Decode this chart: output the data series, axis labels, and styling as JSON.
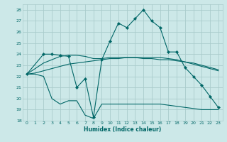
{
  "xlabel": "Humidex (Indice chaleur)",
  "bg_color": "#cce8e8",
  "grid_color": "#aacccc",
  "line_color": "#006666",
  "xlim": [
    -0.5,
    23.5
  ],
  "ylim": [
    18,
    28.5
  ],
  "xticks": [
    0,
    1,
    2,
    3,
    4,
    5,
    6,
    7,
    8,
    9,
    10,
    11,
    12,
    13,
    14,
    15,
    16,
    17,
    18,
    19,
    20,
    21,
    22,
    23
  ],
  "yticks": [
    18,
    19,
    20,
    21,
    22,
    23,
    24,
    25,
    26,
    27,
    28
  ],
  "line1_x": [
    0,
    2,
    3,
    4,
    5,
    6,
    7,
    8,
    9,
    10,
    11,
    12,
    13,
    14,
    15,
    16,
    17,
    18,
    19,
    20,
    21,
    22,
    23
  ],
  "line1_y": [
    22.2,
    24.0,
    24.0,
    23.9,
    23.8,
    21.0,
    21.8,
    18.3,
    23.5,
    25.2,
    26.8,
    26.4,
    27.2,
    28.0,
    27.0,
    26.4,
    24.2,
    24.2,
    22.8,
    22.0,
    21.2,
    20.2,
    19.2
  ],
  "line2_x": [
    0,
    1,
    2,
    3,
    4,
    5,
    6,
    7,
    8,
    9,
    10,
    11,
    12,
    13,
    14,
    15,
    16,
    17,
    18,
    19,
    20,
    21,
    22,
    23
  ],
  "line2_y": [
    22.2,
    22.7,
    23.2,
    23.5,
    23.8,
    23.9,
    23.9,
    23.8,
    23.6,
    23.6,
    23.7,
    23.7,
    23.7,
    23.7,
    23.6,
    23.6,
    23.5,
    23.5,
    23.4,
    23.3,
    23.2,
    23.0,
    22.8,
    22.6
  ],
  "line3_x": [
    0,
    1,
    2,
    3,
    4,
    5,
    6,
    7,
    8,
    9,
    10,
    11,
    12,
    13,
    14,
    15,
    16,
    17,
    18,
    19,
    20,
    21,
    22,
    23
  ],
  "line3_y": [
    22.2,
    22.3,
    22.5,
    22.7,
    22.9,
    23.1,
    23.2,
    23.3,
    23.4,
    23.5,
    23.6,
    23.6,
    23.7,
    23.7,
    23.7,
    23.7,
    23.7,
    23.6,
    23.5,
    23.3,
    23.1,
    22.9,
    22.7,
    22.5
  ],
  "line4_x": [
    0,
    1,
    2,
    3,
    4,
    5,
    6,
    7,
    8,
    9,
    10,
    11,
    12,
    13,
    14,
    15,
    16,
    17,
    18,
    19,
    20,
    21,
    22,
    23
  ],
  "line4_y": [
    22.2,
    22.2,
    22.0,
    20.0,
    19.5,
    19.8,
    19.8,
    18.5,
    18.2,
    19.5,
    19.5,
    19.5,
    19.5,
    19.5,
    19.5,
    19.5,
    19.5,
    19.4,
    19.3,
    19.2,
    19.1,
    19.0,
    19.0,
    19.0
  ]
}
